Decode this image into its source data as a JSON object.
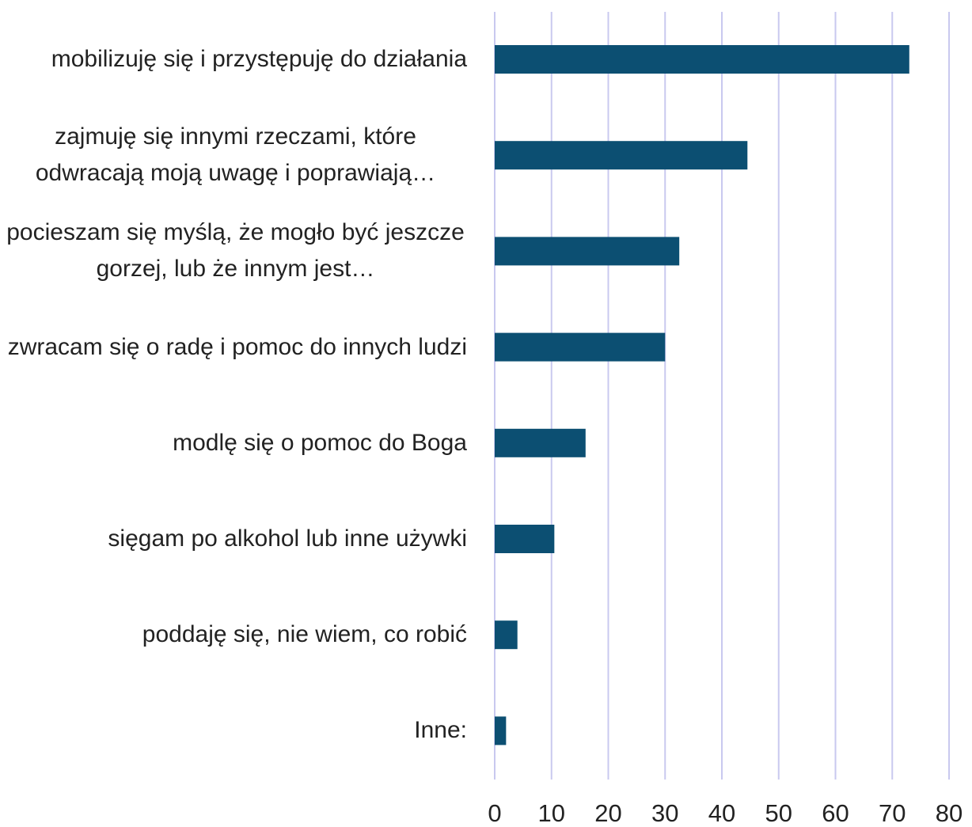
{
  "chart_data": {
    "type": "barh",
    "categories": [
      "mobilizuję się i przystępuję do działania",
      "zajmuję się innymi rzeczami, które odwracają moją uwagę i poprawiają…",
      "pocieszam się myślą, że mogło być jeszcze gorzej, lub że innym jest…",
      "zwracam się o radę i pomoc do innych ludzi",
      "modlę się o pomoc do Boga",
      "sięgam po alkohol lub inne używki",
      "poddaję się, nie wiem, co robić",
      "Inne:"
    ],
    "values": [
      73,
      44.5,
      32.5,
      30,
      16,
      10.5,
      4,
      2
    ],
    "color": "#0c4f72",
    "xlim": [
      0,
      80
    ],
    "xticks": [
      0,
      10,
      20,
      30,
      40,
      50,
      60,
      70,
      80
    ],
    "grid": true
  }
}
